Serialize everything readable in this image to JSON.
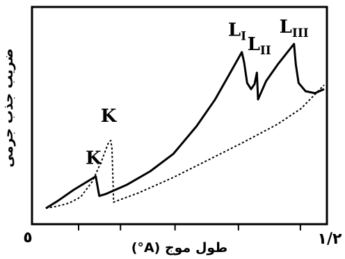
{
  "chart_data": {
    "type": "line",
    "xlabel": "طول موج (A°)",
    "ylabel": "ضریب جذب جرمی",
    "x_tick_labels": [
      "٥",
      "١/٢"
    ],
    "xlim": [
      0,
      1.2
    ],
    "grid": false,
    "legend": "none",
    "series": [
      {
        "style": "solid",
        "points": [
          [
            0.0,
            0.02
          ],
          [
            0.05,
            0.055
          ],
          [
            0.12,
            0.11
          ],
          [
            0.215,
            0.175
          ],
          [
            0.23,
            0.08
          ],
          [
            0.26,
            0.09
          ],
          [
            0.35,
            0.135
          ],
          [
            0.45,
            0.2
          ],
          [
            0.55,
            0.285
          ],
          [
            0.65,
            0.42
          ],
          [
            0.73,
            0.55
          ],
          [
            0.8,
            0.69
          ],
          [
            0.845,
            0.78
          ],
          [
            0.855,
            0.73
          ],
          [
            0.868,
            0.63
          ],
          [
            0.885,
            0.6
          ],
          [
            0.9,
            0.625
          ],
          [
            0.91,
            0.68
          ],
          [
            0.915,
            0.55
          ],
          [
            0.95,
            0.64
          ],
          [
            1.0,
            0.72
          ],
          [
            1.07,
            0.82
          ],
          [
            1.078,
            0.72
          ],
          [
            1.09,
            0.63
          ],
          [
            1.12,
            0.59
          ],
          [
            1.16,
            0.58
          ],
          [
            1.2,
            0.6
          ]
        ]
      },
      {
        "style": "dashed",
        "points": [
          [
            0.0,
            0.02
          ],
          [
            0.05,
            0.03
          ],
          [
            0.1,
            0.045
          ],
          [
            0.15,
            0.075
          ],
          [
            0.2,
            0.15
          ],
          [
            0.24,
            0.25
          ],
          [
            0.27,
            0.34
          ],
          [
            0.28,
            0.35
          ],
          [
            0.285,
            0.31
          ],
          [
            0.29,
            0.13
          ],
          [
            0.292,
            0.05
          ],
          [
            0.4,
            0.095
          ],
          [
            0.55,
            0.17
          ],
          [
            0.7,
            0.255
          ],
          [
            0.85,
            0.34
          ],
          [
            1.0,
            0.43
          ],
          [
            1.1,
            0.505
          ],
          [
            1.2,
            0.62
          ]
        ]
      }
    ],
    "annotations": [
      {
        "text": "K",
        "x": 0.205,
        "y": 0.235
      },
      {
        "text": "K",
        "x": 0.27,
        "y": 0.44
      },
      {
        "text": "L",
        "sub": "I",
        "x": 0.825,
        "y": 0.86
      },
      {
        "text": "L",
        "sub": "II",
        "x": 0.92,
        "y": 0.79
      },
      {
        "text": "L",
        "sub": "III",
        "x": 1.07,
        "y": 0.875
      }
    ]
  }
}
